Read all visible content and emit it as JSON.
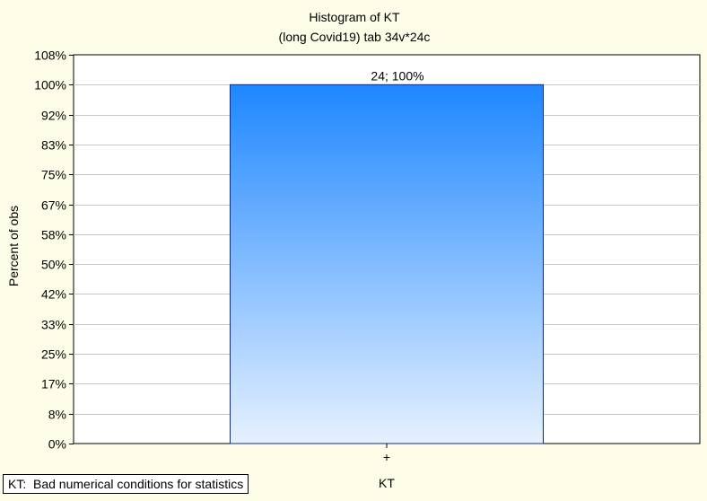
{
  "chart_data": {
    "type": "bar",
    "title": "Histogram of KT",
    "subtitle": "(long Covid19) tab 34v*24c",
    "xlabel": "KT",
    "ylabel": "Percent of obs",
    "categories": [
      "+"
    ],
    "series": [
      {
        "values": [
          100
        ],
        "data_labels": [
          "24; 100%"
        ]
      }
    ],
    "ylim": [
      0,
      108
    ],
    "yticks": [
      0,
      8.333,
      16.667,
      25,
      33.333,
      41.667,
      50,
      58.333,
      66.667,
      75,
      83.333,
      91.667,
      100,
      108.333
    ],
    "yticklabels": [
      "0%",
      "8%",
      "17%",
      "25%",
      "33%",
      "42%",
      "50%",
      "58%",
      "67%",
      "75%",
      "83%",
      "92%",
      "100%",
      "108%"
    ],
    "grid": true,
    "colors": {
      "bar_top": "#1e87ff",
      "bar_bottom": "#e6f1ff",
      "bar_edge": "#0a2a8c",
      "background": "#fefee8",
      "plot_bg": "#ffffff",
      "grid": "#c8c8c8"
    }
  },
  "note": "KT:  Bad numerical conditions for statistics"
}
